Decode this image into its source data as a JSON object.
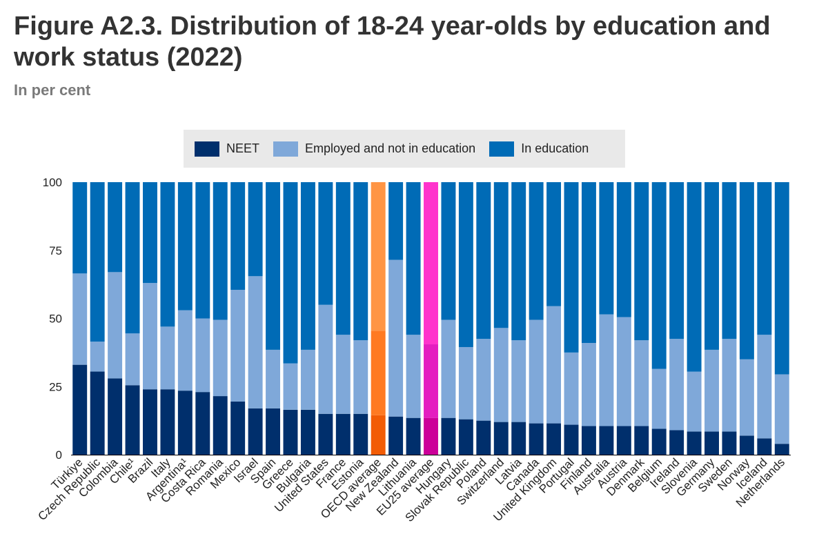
{
  "title": "Figure A2.3. Distribution of 18-24 year-olds by education and work status (2022)",
  "subtitle": "In per cent",
  "colors": {
    "neet": "#002f6c",
    "employed": "#7fa8d9",
    "in_education": "#006bb6",
    "oecd_neet": "#f25c05",
    "oecd_employed": "#ff7a22",
    "oecd_education": "#ff9544",
    "eu_neet": "#cc0099",
    "eu_employed": "#e41ec0",
    "eu_education": "#ff33cc"
  },
  "chart_data": {
    "type": "bar",
    "stacked": true,
    "ylim": [
      0,
      100
    ],
    "yticks": [
      0,
      25,
      50,
      75,
      100
    ],
    "legend_position": "top-center",
    "categories": [
      "Türkiye",
      "Czech Republic",
      "Colombia",
      "Chile¹",
      "Brazil",
      "Italy",
      "Argentina¹",
      "Costa Rica",
      "Romania",
      "Mexico",
      "Israel",
      "Spain",
      "Greece",
      "Bulgaria",
      "United States",
      "France",
      "Estonia",
      "OECD average",
      "New Zealand",
      "Lithuania",
      "EU25 average",
      "Hungary",
      "Slovak Republic",
      "Poland",
      "Switzerland",
      "Latvia",
      "Canada",
      "United Kingdom",
      "Portugal",
      "Finland",
      "Australia",
      "Austria",
      "Denmark",
      "Belgium",
      "Ireland",
      "Slovenia",
      "Germany",
      "Sweden",
      "Norway",
      "Iceland",
      "Netherlands"
    ],
    "highlight": {
      "OECD average": "oecd",
      "EU25 average": "eu"
    },
    "series": [
      {
        "name": "NEET",
        "values": [
          33,
          30.5,
          28,
          25.5,
          24,
          24,
          23.5,
          23,
          21.5,
          19.5,
          17,
          17,
          16.5,
          16.5,
          15,
          15,
          15,
          14.5,
          14,
          13.5,
          13.5,
          13.5,
          13,
          12.5,
          12,
          12,
          11.5,
          11.5,
          11,
          10.5,
          10.5,
          10.5,
          10.5,
          9.5,
          9,
          8.5,
          8.5,
          8.5,
          7,
          6,
          4
        ]
      },
      {
        "name": "Employed and not in education",
        "values": [
          33.5,
          11,
          39,
          19,
          39,
          23,
          29.5,
          27,
          28,
          41,
          48.5,
          21.5,
          17,
          22,
          40,
          29,
          27,
          31,
          57.5,
          30.5,
          27,
          36,
          26.5,
          30,
          34.5,
          30,
          38,
          43,
          26.5,
          30.5,
          41,
          40,
          31.5,
          22,
          33.5,
          22,
          30,
          34,
          28,
          38,
          25.5
        ]
      },
      {
        "name": "In education",
        "values": [
          33.5,
          58.5,
          33,
          55.5,
          37,
          53,
          47,
          50,
          50.5,
          39.5,
          34.5,
          61.5,
          66.5,
          61.5,
          45,
          56,
          58,
          54.5,
          28.5,
          56,
          59.5,
          50.5,
          60.5,
          57.5,
          53.5,
          58,
          50.5,
          45.5,
          62.5,
          59,
          48.5,
          49.5,
          58,
          68.5,
          57.5,
          69.5,
          61.5,
          57.5,
          65,
          56,
          70.5
        ]
      }
    ]
  }
}
